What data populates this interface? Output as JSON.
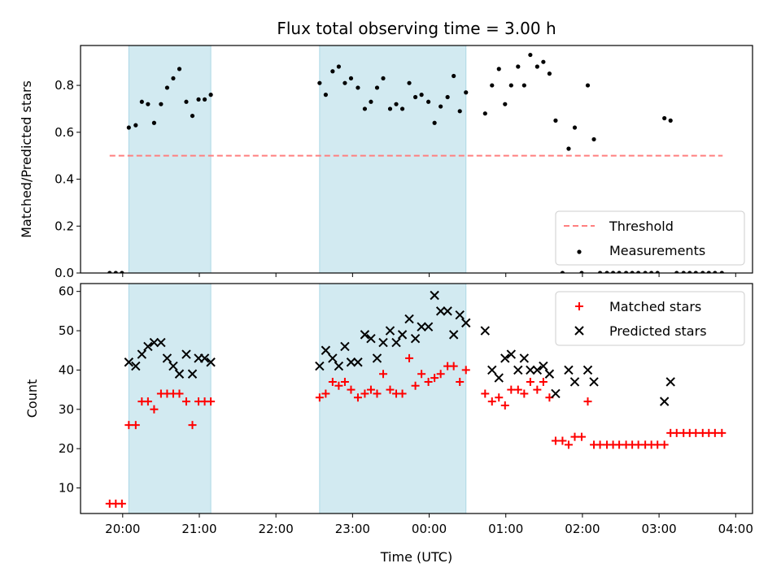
{
  "chart_data": {
    "title": "Flux total observing time = 3.00 h",
    "xlabel": "Time (UTC)",
    "x_ticks": [
      {
        "value": 20,
        "label": "20:00"
      },
      {
        "value": 21,
        "label": "21:00"
      },
      {
        "value": 22,
        "label": "22:00"
      },
      {
        "value": 23,
        "label": "23:00"
      },
      {
        "value": 24,
        "label": "00:00"
      },
      {
        "value": 25,
        "label": "01:00"
      },
      {
        "value": 26,
        "label": "02:00"
      },
      {
        "value": 27,
        "label": "03:00"
      },
      {
        "value": 28,
        "label": "04:00"
      }
    ],
    "xlim": [
      19.45,
      28.22
    ],
    "shaded_intervals": [
      [
        20.08,
        21.15
      ],
      [
        22.57,
        24.48
      ]
    ],
    "shade_color": "#add8e6",
    "panels": [
      {
        "type": "scatter",
        "ylabel": "Matched/Predicted stars",
        "ylim": [
          0,
          0.97
        ],
        "y_ticks": [
          0.0,
          0.2,
          0.4,
          0.6,
          0.8
        ],
        "y_tick_labels": [
          "0.0",
          "0.2",
          "0.4",
          "0.6",
          "0.8"
        ],
        "legend_position": "bottom-right",
        "threshold": {
          "name": "Threshold",
          "y": 0.5,
          "x_range": [
            19.83,
            27.83
          ],
          "color": "#ff7f7f"
        },
        "series": [
          {
            "name": "Measurements",
            "marker": "dot",
            "color": "#000000",
            "points": [
              [
                19.83,
                0.0
              ],
              [
                19.91,
                0.0
              ],
              [
                19.99,
                0.0
              ],
              [
                20.08,
                0.62
              ],
              [
                20.17,
                0.63
              ],
              [
                20.25,
                0.73
              ],
              [
                20.33,
                0.72
              ],
              [
                20.41,
                0.64
              ],
              [
                20.5,
                0.72
              ],
              [
                20.58,
                0.79
              ],
              [
                20.66,
                0.83
              ],
              [
                20.74,
                0.87
              ],
              [
                20.83,
                0.73
              ],
              [
                20.91,
                0.67
              ],
              [
                20.99,
                0.74
              ],
              [
                21.07,
                0.74
              ],
              [
                21.15,
                0.76
              ],
              [
                22.57,
                0.81
              ],
              [
                22.65,
                0.76
              ],
              [
                22.74,
                0.86
              ],
              [
                22.82,
                0.88
              ],
              [
                22.9,
                0.81
              ],
              [
                22.98,
                0.83
              ],
              [
                23.07,
                0.79
              ],
              [
                23.16,
                0.7
              ],
              [
                23.24,
                0.73
              ],
              [
                23.32,
                0.79
              ],
              [
                23.4,
                0.83
              ],
              [
                23.49,
                0.7
              ],
              [
                23.57,
                0.72
              ],
              [
                23.65,
                0.7
              ],
              [
                23.74,
                0.81
              ],
              [
                23.82,
                0.75
              ],
              [
                23.9,
                0.76
              ],
              [
                23.99,
                0.73
              ],
              [
                24.07,
                0.64
              ],
              [
                24.15,
                0.71
              ],
              [
                24.24,
                0.75
              ],
              [
                24.32,
                0.84
              ],
              [
                24.4,
                0.69
              ],
              [
                24.48,
                0.77
              ],
              [
                24.73,
                0.68
              ],
              [
                24.82,
                0.8
              ],
              [
                24.91,
                0.87
              ],
              [
                24.99,
                0.72
              ],
              [
                25.07,
                0.8
              ],
              [
                25.16,
                0.88
              ],
              [
                25.24,
                0.8
              ],
              [
                25.32,
                0.93
              ],
              [
                25.41,
                0.88
              ],
              [
                25.49,
                0.9
              ],
              [
                25.57,
                0.85
              ],
              [
                25.65,
                0.65
              ],
              [
                25.74,
                0.0
              ],
              [
                25.82,
                0.53
              ],
              [
                25.9,
                0.62
              ],
              [
                25.99,
                0.0
              ],
              [
                26.07,
                0.8
              ],
              [
                26.15,
                0.57
              ],
              [
                26.23,
                0.0
              ],
              [
                26.32,
                0.0
              ],
              [
                26.4,
                0.0
              ],
              [
                26.48,
                0.0
              ],
              [
                26.57,
                0.0
              ],
              [
                26.65,
                0.0
              ],
              [
                26.73,
                0.0
              ],
              [
                26.82,
                0.0
              ],
              [
                26.9,
                0.0
              ],
              [
                26.98,
                0.0
              ],
              [
                27.07,
                0.66
              ],
              [
                27.15,
                0.65
              ],
              [
                27.23,
                0.0
              ],
              [
                27.32,
                0.0
              ],
              [
                27.4,
                0.0
              ],
              [
                27.48,
                0.0
              ],
              [
                27.57,
                0.0
              ],
              [
                27.65,
                0.0
              ],
              [
                27.73,
                0.0
              ],
              [
                27.82,
                0.0
              ]
            ]
          }
        ]
      },
      {
        "type": "scatter",
        "ylabel": "Count",
        "ylim": [
          3.5,
          62
        ],
        "y_ticks": [
          10,
          20,
          30,
          40,
          50,
          60
        ],
        "y_tick_labels": [
          "10",
          "20",
          "30",
          "40",
          "50",
          "60"
        ],
        "legend_position": "top-right",
        "series": [
          {
            "name": "Matched stars",
            "marker": "plus",
            "color": "#ff0000",
            "points": [
              [
                19.83,
                6
              ],
              [
                19.91,
                6
              ],
              [
                19.99,
                6
              ],
              [
                20.08,
                26
              ],
              [
                20.17,
                26
              ],
              [
                20.25,
                32
              ],
              [
                20.33,
                32
              ],
              [
                20.41,
                30
              ],
              [
                20.5,
                34
              ],
              [
                20.58,
                34
              ],
              [
                20.66,
                34
              ],
              [
                20.74,
                34
              ],
              [
                20.83,
                32
              ],
              [
                20.91,
                26
              ],
              [
                20.99,
                32
              ],
              [
                21.07,
                32
              ],
              [
                21.15,
                32
              ],
              [
                22.57,
                33
              ],
              [
                22.65,
                34
              ],
              [
                22.74,
                37
              ],
              [
                22.82,
                36
              ],
              [
                22.9,
                37
              ],
              [
                22.98,
                35
              ],
              [
                23.07,
                33
              ],
              [
                23.16,
                34
              ],
              [
                23.24,
                35
              ],
              [
                23.32,
                34
              ],
              [
                23.4,
                39
              ],
              [
                23.49,
                35
              ],
              [
                23.57,
                34
              ],
              [
                23.65,
                34
              ],
              [
                23.74,
                43
              ],
              [
                23.82,
                36
              ],
              [
                23.9,
                39
              ],
              [
                23.99,
                37
              ],
              [
                24.07,
                38
              ],
              [
                24.15,
                39
              ],
              [
                24.24,
                41
              ],
              [
                24.32,
                41
              ],
              [
                24.4,
                37
              ],
              [
                24.48,
                40
              ],
              [
                24.73,
                34
              ],
              [
                24.82,
                32
              ],
              [
                24.91,
                33
              ],
              [
                24.99,
                31
              ],
              [
                25.07,
                35
              ],
              [
                25.16,
                35
              ],
              [
                25.24,
                34
              ],
              [
                25.32,
                37
              ],
              [
                25.41,
                35
              ],
              [
                25.49,
                37
              ],
              [
                25.57,
                33
              ],
              [
                25.65,
                22
              ],
              [
                25.74,
                22
              ],
              [
                25.82,
                21
              ],
              [
                25.9,
                23
              ],
              [
                25.99,
                23
              ],
              [
                26.07,
                32
              ],
              [
                26.15,
                21
              ],
              [
                26.23,
                21
              ],
              [
                26.32,
                21
              ],
              [
                26.4,
                21
              ],
              [
                26.48,
                21
              ],
              [
                26.57,
                21
              ],
              [
                26.65,
                21
              ],
              [
                26.73,
                21
              ],
              [
                26.82,
                21
              ],
              [
                26.9,
                21
              ],
              [
                26.98,
                21
              ],
              [
                27.07,
                21
              ],
              [
                27.15,
                24
              ],
              [
                27.23,
                24
              ],
              [
                27.32,
                24
              ],
              [
                27.4,
                24
              ],
              [
                27.48,
                24
              ],
              [
                27.57,
                24
              ],
              [
                27.65,
                24
              ],
              [
                27.73,
                24
              ],
              [
                27.82,
                24
              ]
            ]
          },
          {
            "name": "Predicted stars",
            "marker": "x",
            "color": "#000000",
            "points": [
              [
                20.08,
                42
              ],
              [
                20.17,
                41
              ],
              [
                20.25,
                44
              ],
              [
                20.33,
                46
              ],
              [
                20.41,
                47
              ],
              [
                20.5,
                47
              ],
              [
                20.58,
                43
              ],
              [
                20.66,
                41
              ],
              [
                20.74,
                39
              ],
              [
                20.83,
                44
              ],
              [
                20.91,
                39
              ],
              [
                20.99,
                43
              ],
              [
                21.07,
                43
              ],
              [
                21.15,
                42
              ],
              [
                22.57,
                41
              ],
              [
                22.65,
                45
              ],
              [
                22.74,
                43
              ],
              [
                22.82,
                41
              ],
              [
                22.9,
                46
              ],
              [
                22.98,
                42
              ],
              [
                23.07,
                42
              ],
              [
                23.16,
                49
              ],
              [
                23.24,
                48
              ],
              [
                23.32,
                43
              ],
              [
                23.4,
                47
              ],
              [
                23.49,
                50
              ],
              [
                23.57,
                47
              ],
              [
                23.65,
                49
              ],
              [
                23.74,
                53
              ],
              [
                23.82,
                48
              ],
              [
                23.9,
                51
              ],
              [
                23.99,
                51
              ],
              [
                24.07,
                59
              ],
              [
                24.15,
                55
              ],
              [
                24.24,
                55
              ],
              [
                24.32,
                49
              ],
              [
                24.4,
                54
              ],
              [
                24.48,
                52
              ],
              [
                24.73,
                50
              ],
              [
                24.82,
                40
              ],
              [
                24.91,
                38
              ],
              [
                24.99,
                43
              ],
              [
                25.07,
                44
              ],
              [
                25.16,
                40
              ],
              [
                25.24,
                43
              ],
              [
                25.32,
                40
              ],
              [
                25.41,
                40
              ],
              [
                25.49,
                41
              ],
              [
                25.57,
                39
              ],
              [
                25.65,
                34
              ],
              [
                25.82,
                40
              ],
              [
                25.9,
                37
              ],
              [
                26.07,
                40
              ],
              [
                26.15,
                37
              ],
              [
                27.07,
                32
              ],
              [
                27.15,
                37
              ]
            ]
          }
        ]
      }
    ]
  }
}
